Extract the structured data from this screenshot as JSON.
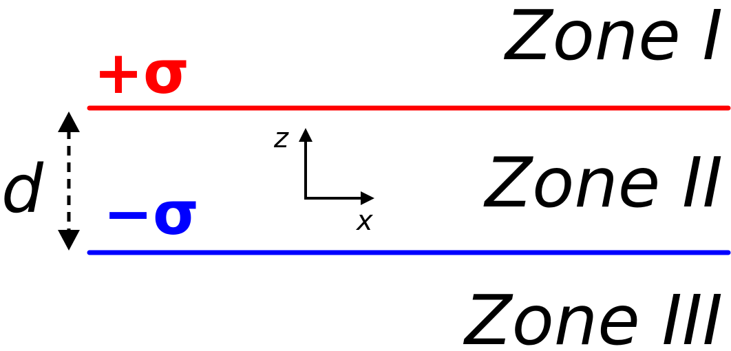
{
  "zones": {
    "zone1": "Zone I",
    "zone2": "Zone II",
    "zone3": "Zone III"
  },
  "plates": {
    "top": {
      "label": "+σ",
      "color": "#ff0000"
    },
    "bottom": {
      "label": "−σ",
      "color": "#0000ff"
    }
  },
  "separation": {
    "label": "d"
  },
  "axes": {
    "x_label": "x",
    "z_label": "z"
  },
  "colors": {
    "text": "#000000",
    "arrows": "#000000"
  }
}
